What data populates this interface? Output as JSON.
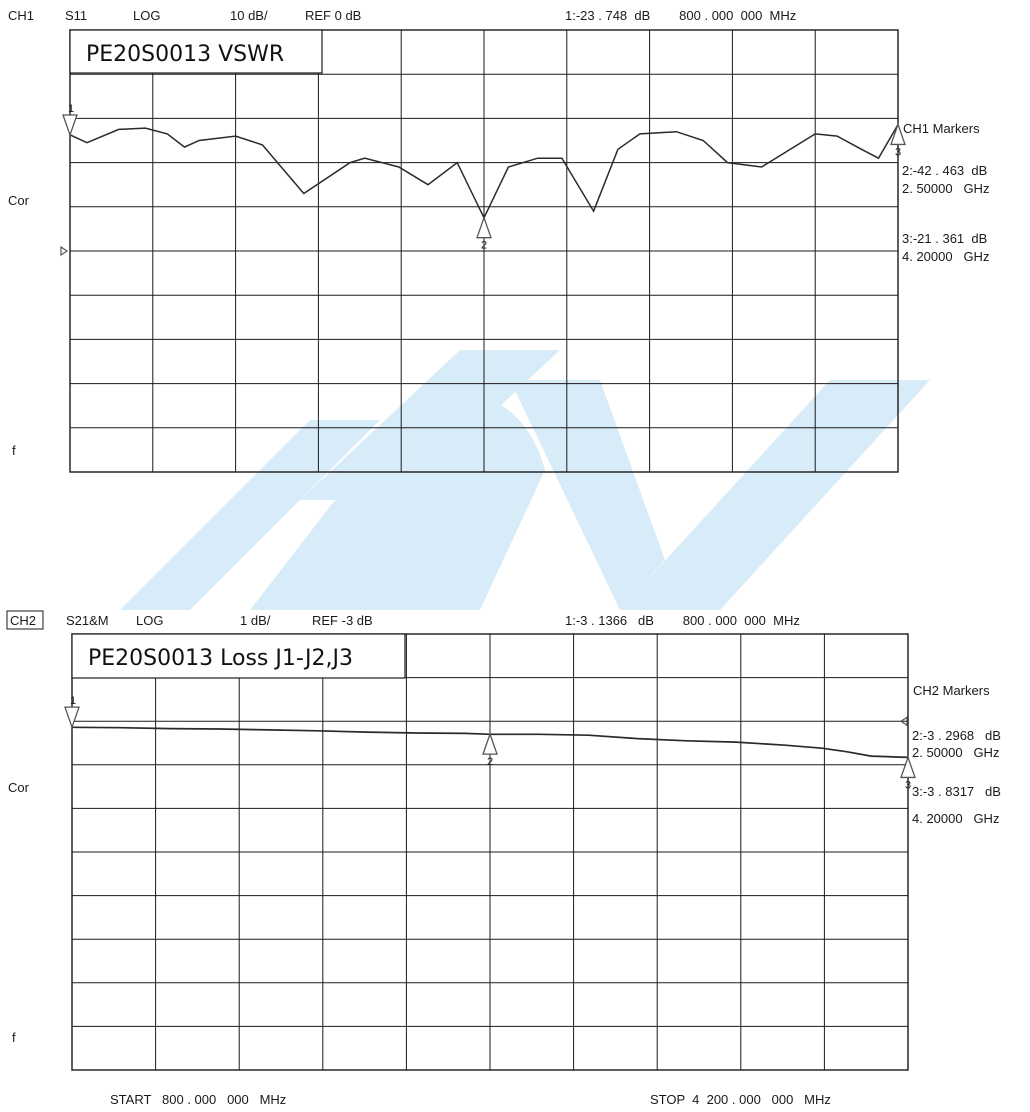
{
  "colors": {
    "watermark": "#d7ecf8",
    "grid": "#1a1a1a",
    "trace": "#2a2a2a",
    "marker": "#555555"
  },
  "chart_data": [
    {
      "type": "line",
      "channel": "CH1",
      "param": "S11",
      "format": "LOG",
      "scale": "10 dB/",
      "ref": "REF 0 dB",
      "active_marker": "1:-23 . 748  dB        800 . 000  000  MHz",
      "title": "PE20S0013 VSWR",
      "side_label_cor": "Cor",
      "side_label_f": "f",
      "markers_heading": "CH1  Markers",
      "marker_lines": [
        "2:-42 . 463  dB",
        "2. 50000   GHz",
        "3:-21 . 361  dB",
        "4. 20000   GHz"
      ],
      "x_unit": "MHz",
      "xlim": [
        800,
        4200
      ],
      "ylim": [
        -100,
        0
      ],
      "y_divisions": 10,
      "x_divisions": 10,
      "grid": true,
      "ref_pointer_y": -50,
      "markers": [
        {
          "label": "1",
          "x": 800,
          "y": -23.748,
          "pointer": "down"
        },
        {
          "label": "2",
          "x": 2500,
          "y": -42.463,
          "pointer": "up"
        },
        {
          "label": "3",
          "x": 4200,
          "y": -21.361,
          "pointer": "up"
        }
      ],
      "series": [
        {
          "x": [
            800,
            870,
            1000,
            1110,
            1200,
            1270,
            1330,
            1480,
            1590,
            1760,
            1950,
            2010,
            2150,
            2270,
            2390,
            2500,
            2600,
            2720,
            2820,
            2950,
            3050,
            3140,
            3290,
            3400,
            3500,
            3640,
            3860,
            3950,
            4050,
            4120,
            4200
          ],
          "y": [
            -23.7,
            -25.5,
            -22.5,
            -22.2,
            -23.5,
            -26.5,
            -25,
            -24,
            -26,
            -37,
            -30,
            -29,
            -31,
            -35,
            -30,
            -42.5,
            -31,
            -29,
            -29,
            -41,
            -27,
            -23.5,
            -23,
            -25,
            -30,
            -31,
            -23.5,
            -24,
            -27,
            -29,
            -21.4
          ]
        }
      ]
    },
    {
      "type": "line",
      "channel": "CH2",
      "param": "S21&M",
      "format": "LOG",
      "scale": "1 dB/",
      "ref": "REF -3 dB",
      "active_marker": "1:-3 . 1366   dB        800 . 000  000  MHz",
      "title": "PE20S0013 Loss J1-J2,J3",
      "side_label_cor": "Cor",
      "side_label_f": "f",
      "markers_heading": "CH2  Markers",
      "marker_lines": [
        "2:-3 . 2968   dB",
        "2. 50000   GHz",
        "3:-3 . 8317   dB",
        "4. 20000   GHz"
      ],
      "x_unit": "MHz",
      "start_label": "START   800 . 000   000   MHz",
      "stop_label": "STOP  4  200 . 000   000   MHz",
      "xlim": [
        800,
        4200
      ],
      "ylim": [
        -11,
        -1
      ],
      "y_divisions": 10,
      "x_divisions": 10,
      "grid": true,
      "ref_pointer_y": -3,
      "markers": [
        {
          "label": "1",
          "x": 800,
          "y": -3.1366,
          "pointer": "down"
        },
        {
          "label": "2",
          "x": 2500,
          "y": -3.2968,
          "pointer": "up"
        },
        {
          "label": "3",
          "x": 4200,
          "y": -3.8317,
          "pointer": "up"
        }
      ],
      "series": [
        {
          "x": [
            800,
            1000,
            1200,
            1400,
            1600,
            1800,
            2000,
            2200,
            2400,
            2500,
            2700,
            2900,
            3100,
            3300,
            3500,
            3700,
            3850,
            3950,
            4050,
            4200
          ],
          "y": [
            -3.14,
            -3.15,
            -3.17,
            -3.18,
            -3.2,
            -3.22,
            -3.25,
            -3.27,
            -3.28,
            -3.3,
            -3.3,
            -3.32,
            -3.4,
            -3.45,
            -3.48,
            -3.55,
            -3.62,
            -3.7,
            -3.8,
            -3.83
          ]
        }
      ]
    }
  ]
}
